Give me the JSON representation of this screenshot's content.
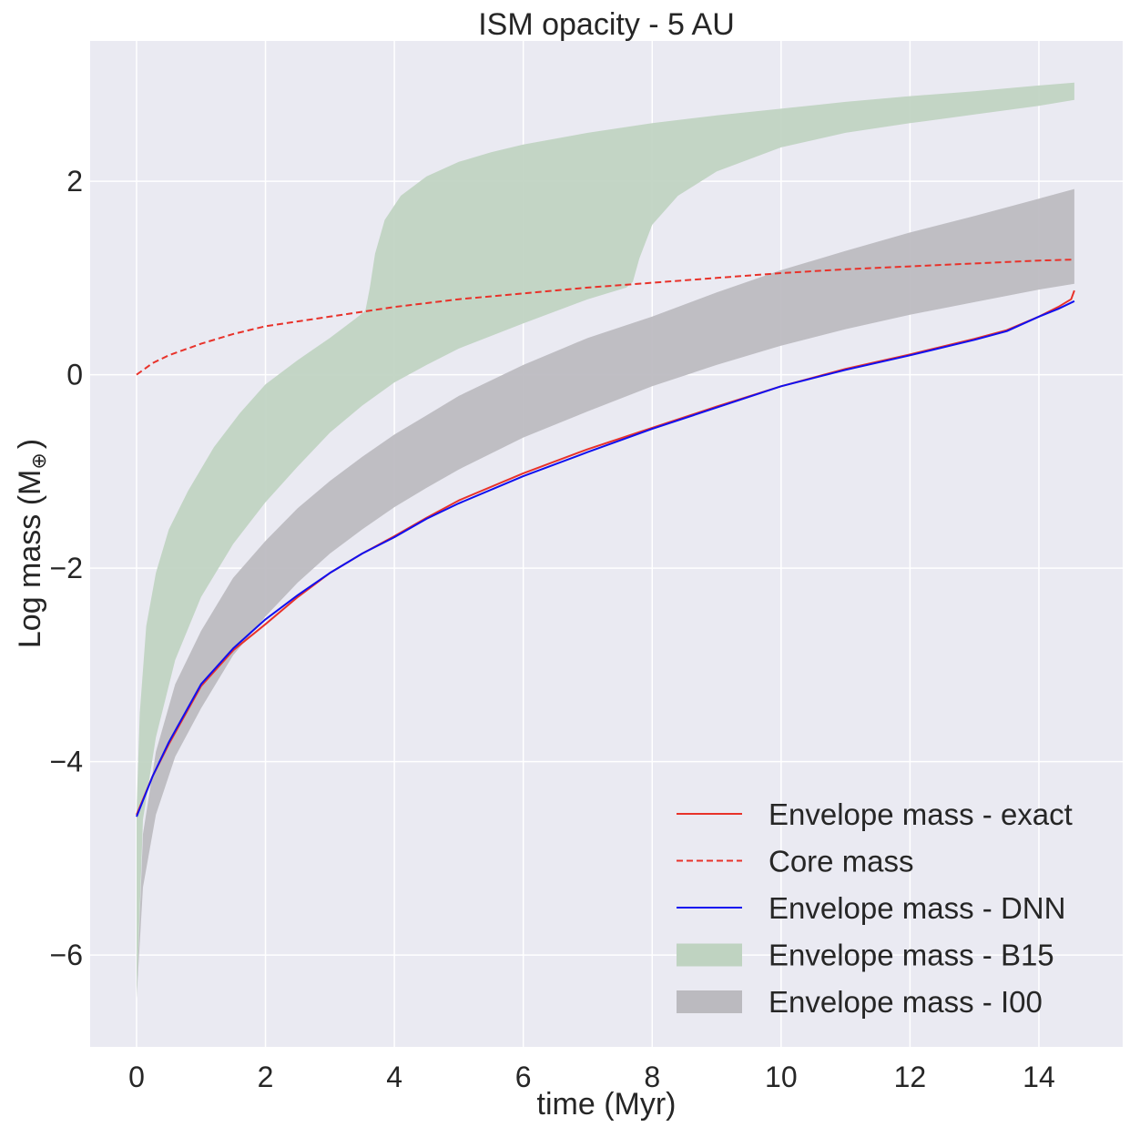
{
  "chart_data": {
    "type": "line",
    "title": "ISM opacity - 5 AU",
    "xlabel": "time (Myr)",
    "ylabel": "Log mass (M",
    "ylabel_symbol": "⊕",
    "ylabel_close": ")",
    "xlim": [
      -0.72,
      15.3
    ],
    "ylim": [
      -6.95,
      3.45
    ],
    "xticks": [
      0,
      2,
      4,
      6,
      8,
      10,
      12,
      14
    ],
    "xtick_labels": [
      "0",
      "2",
      "4",
      "6",
      "8",
      "10",
      "12",
      "14"
    ],
    "yticks": [
      -6,
      -4,
      -2,
      0,
      2
    ],
    "ytick_labels": [
      "−6",
      "−4",
      "−2",
      "0",
      "2"
    ],
    "grid": true,
    "legend_position": "lower-right",
    "colors": {
      "background": "#eaeaf2",
      "grid": "#ffffff",
      "exact": "#e8322a",
      "core": "#e8322a",
      "dnn": "#1010f0",
      "b15": "#bfd3c1",
      "i00": "#bbbabf"
    },
    "series": [
      {
        "name": "Envelope mass - exact",
        "style": "solid",
        "color_key": "exact",
        "x": [
          0,
          0.25,
          0.5,
          1,
          1.5,
          2,
          2.5,
          3,
          3.5,
          4,
          4.5,
          5,
          6,
          7,
          8,
          9,
          10,
          11,
          12,
          13,
          13.5,
          14,
          14.3,
          14.5,
          14.55
        ],
        "y": [
          -4.55,
          -4.15,
          -3.82,
          -3.22,
          -2.85,
          -2.58,
          -2.3,
          -2.05,
          -1.85,
          -1.67,
          -1.48,
          -1.3,
          -1.02,
          -0.77,
          -0.55,
          -0.33,
          -0.12,
          0.06,
          0.21,
          0.37,
          0.46,
          0.6,
          0.7,
          0.78,
          0.87
        ]
      },
      {
        "name": "Core mass",
        "style": "dashed",
        "color_key": "core",
        "x": [
          0,
          0.25,
          0.5,
          1,
          1.5,
          2,
          3,
          4,
          5,
          6,
          7,
          8,
          9,
          10,
          11,
          12,
          13,
          14,
          14.55
        ],
        "y": [
          0,
          0.12,
          0.2,
          0.32,
          0.42,
          0.5,
          0.6,
          0.7,
          0.78,
          0.84,
          0.9,
          0.95,
          1.0,
          1.05,
          1.09,
          1.12,
          1.15,
          1.18,
          1.19
        ]
      },
      {
        "name": "Envelope mass - DNN",
        "style": "solid",
        "color_key": "dnn",
        "x": [
          0,
          0.25,
          0.5,
          1,
          1.5,
          2,
          2.5,
          3,
          3.5,
          4,
          4.5,
          5,
          6,
          7,
          8,
          9,
          10,
          11,
          12,
          13,
          13.5,
          14,
          14.3,
          14.55
        ],
        "y": [
          -4.57,
          -4.15,
          -3.8,
          -3.2,
          -2.83,
          -2.53,
          -2.28,
          -2.05,
          -1.85,
          -1.68,
          -1.49,
          -1.33,
          -1.05,
          -0.8,
          -0.56,
          -0.34,
          -0.12,
          0.05,
          0.2,
          0.36,
          0.45,
          0.6,
          0.68,
          0.76
        ]
      }
    ],
    "bands": [
      {
        "name": "Envelope mass - B15",
        "color_key": "b15",
        "x_upper": [
          0,
          0.05,
          0.15,
          0.3,
          0.5,
          0.8,
          1.2,
          1.6,
          2,
          2.5,
          3,
          3.4,
          3.55,
          3.62,
          3.7,
          3.85,
          4.1,
          4.5,
          5,
          5.5,
          6,
          7,
          8,
          9,
          10,
          11,
          12,
          13,
          14,
          14.55
        ],
        "y_upper": [
          -4.5,
          -3.5,
          -2.6,
          -2.05,
          -1.6,
          -1.2,
          -0.75,
          -0.4,
          -0.1,
          0.15,
          0.38,
          0.58,
          0.66,
          0.9,
          1.25,
          1.6,
          1.85,
          2.05,
          2.2,
          2.3,
          2.38,
          2.5,
          2.6,
          2.68,
          2.75,
          2.82,
          2.88,
          2.93,
          2.99,
          3.02
        ],
        "x_lower": [
          0,
          0.1,
          0.3,
          0.6,
          1,
          1.5,
          2,
          2.5,
          3,
          3.5,
          4,
          4.5,
          5,
          6,
          7,
          7.6,
          7.7,
          7.8,
          8,
          8.4,
          9,
          10,
          11,
          12,
          13,
          14,
          14.55
        ],
        "y_lower": [
          -6.45,
          -4.6,
          -3.75,
          -2.95,
          -2.3,
          -1.75,
          -1.32,
          -0.95,
          -0.6,
          -0.32,
          -0.08,
          0.1,
          0.27,
          0.53,
          0.78,
          0.9,
          0.96,
          1.2,
          1.55,
          1.85,
          2.1,
          2.35,
          2.5,
          2.6,
          2.69,
          2.78,
          2.84
        ]
      },
      {
        "name": "Envelope mass - I00",
        "color_key": "i00",
        "x_upper": [
          0,
          0.1,
          0.3,
          0.6,
          1,
          1.5,
          2,
          2.5,
          3,
          3.5,
          4,
          4.5,
          5,
          6,
          7,
          8,
          9,
          10,
          11,
          12,
          13,
          14,
          14.55
        ],
        "y_upper": [
          -6.45,
          -4.75,
          -3.9,
          -3.2,
          -2.65,
          -2.1,
          -1.72,
          -1.38,
          -1.1,
          -0.85,
          -0.62,
          -0.42,
          -0.22,
          0.1,
          0.38,
          0.6,
          0.85,
          1.08,
          1.28,
          1.47,
          1.64,
          1.82,
          1.92
        ],
        "x_lower": [
          0,
          0.1,
          0.3,
          0.6,
          1,
          1.5,
          2,
          2.5,
          3,
          3.5,
          4,
          4.5,
          5,
          6,
          7,
          8,
          9,
          10,
          11,
          12,
          13,
          14,
          14.55
        ],
        "y_lower": [
          -6.45,
          -5.3,
          -4.55,
          -3.95,
          -3.45,
          -2.9,
          -2.5,
          -2.15,
          -1.85,
          -1.6,
          -1.37,
          -1.17,
          -0.98,
          -0.65,
          -0.38,
          -0.12,
          0.1,
          0.3,
          0.47,
          0.62,
          0.75,
          0.88,
          0.94
        ]
      }
    ],
    "legend": [
      {
        "label": "Envelope mass - exact",
        "kind": "line",
        "color_key": "exact",
        "style": "solid"
      },
      {
        "label": "Core mass",
        "kind": "line",
        "color_key": "core",
        "style": "dashed"
      },
      {
        "label": "Envelope mass - DNN",
        "kind": "line",
        "color_key": "dnn",
        "style": "solid"
      },
      {
        "label": "Envelope mass - B15",
        "kind": "patch",
        "color_key": "b15"
      },
      {
        "label": "Envelope mass - I00",
        "kind": "patch",
        "color_key": "i00"
      }
    ]
  }
}
